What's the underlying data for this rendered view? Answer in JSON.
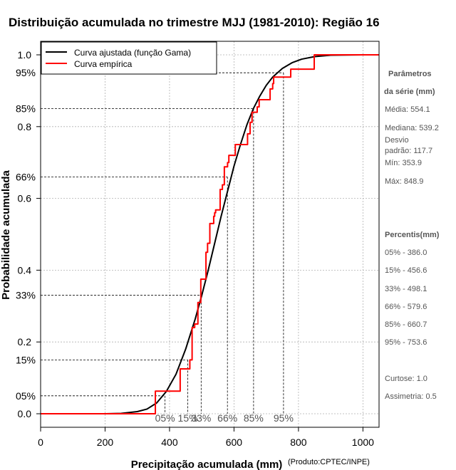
{
  "chart_data": {
    "type": "line",
    "title": "Distribuição acumulada no trimestre MJJ (1981-2010): Região 16",
    "xlabel": "Precipitação acumulada (mm)",
    "ylabel": "Probabilidade acumulada",
    "credit": "(Produto:CPTEC/INPE)",
    "xlim": [
      0,
      1050
    ],
    "ylim": [
      0,
      1
    ],
    "x_ticks": [
      0,
      200,
      400,
      600,
      800,
      1000
    ],
    "y_ticks": [
      {
        "value": 0.0,
        "label": "0.0"
      },
      {
        "value": 0.2,
        "label": "0.2"
      },
      {
        "value": 0.4,
        "label": "0.4"
      },
      {
        "value": 0.6,
        "label": "0.6"
      },
      {
        "value": 0.8,
        "label": "0.8"
      },
      {
        "value": 1.0,
        "label": "1.0"
      }
    ],
    "grid": true,
    "legend": {
      "position": "top-left",
      "entries": [
        {
          "label": "Curva ajustada (função Gama)",
          "color": "#000000"
        },
        {
          "label": "Curva empírica",
          "color": "#ff0000"
        }
      ]
    },
    "percentiles": [
      {
        "p": 0.05,
        "y_label": "05%",
        "x_label": "05%",
        "value": 386.0
      },
      {
        "p": 0.15,
        "y_label": "15%",
        "x_label": "15%",
        "value": 456.6
      },
      {
        "p": 0.33,
        "y_label": "33%",
        "x_label": "33%",
        "value": 498.1
      },
      {
        "p": 0.66,
        "y_label": "66%",
        "x_label": "66%",
        "value": 579.6
      },
      {
        "p": 0.85,
        "y_label": "85%",
        "x_label": "85%",
        "value": 660.7
      },
      {
        "p": 0.95,
        "y_label": "95%",
        "x_label": "95%",
        "value": 753.6
      }
    ],
    "series": [
      {
        "name": "Curva ajustada (função Gama)",
        "color": "#000000",
        "x": [
          0,
          200,
          250,
          300,
          330,
          360,
          390,
          420,
          450,
          480,
          500,
          520,
          540,
          560,
          580,
          600,
          620,
          640,
          660,
          680,
          700,
          720,
          750,
          780,
          810,
          850,
          900,
          1000,
          1050
        ],
        "y": [
          0,
          0,
          0.001,
          0.006,
          0.013,
          0.03,
          0.062,
          0.11,
          0.18,
          0.265,
          0.33,
          0.4,
          0.475,
          0.55,
          0.62,
          0.69,
          0.75,
          0.805,
          0.85,
          0.885,
          0.915,
          0.938,
          0.962,
          0.978,
          0.988,
          0.995,
          0.999,
          1.0,
          1.0
        ]
      },
      {
        "name": "Curva empírica",
        "color": "#ff0000",
        "x": [
          0,
          353.9,
          356,
          416,
          433,
          453,
          463,
          470,
          478,
          488,
          497,
          513,
          518,
          525,
          537,
          540,
          543,
          557,
          564,
          570,
          580,
          584,
          596,
          604,
          622,
          631,
          642,
          650,
          656,
          672,
          678,
          712,
          720,
          723,
          748,
          776,
          807,
          848.9,
          1050
        ],
        "y": [
          0,
          0,
          0.063,
          0.063,
          0.125,
          0.125,
          0.15,
          0.24,
          0.25,
          0.31,
          0.375,
          0.45,
          0.475,
          0.53,
          0.55,
          0.56,
          0.568,
          0.625,
          0.638,
          0.688,
          0.7,
          0.72,
          0.72,
          0.75,
          0.75,
          0.75,
          0.78,
          0.812,
          0.84,
          0.855,
          0.875,
          0.905,
          0.92,
          0.938,
          0.938,
          0.96,
          0.96,
          1.0,
          1.0
        ],
        "step": true
      }
    ]
  },
  "side_panel": {
    "params_title_1": "Parâmetros",
    "params_title_2": "da série (mm)",
    "media": "Média: 554.1",
    "mediana": "Mediana: 539.2",
    "desvio_1": "Desvio",
    "desvio_2": "padrão: 117.7",
    "min": "Mín: 353.9",
    "max": "Máx: 848.9",
    "percentis_title": "Percentis(mm)",
    "percentis": [
      "05% - 386.0",
      "15% - 456.6",
      "33% - 498.1",
      "66% - 579.6",
      "85% - 660.7",
      "95% - 753.6"
    ],
    "curtose": "Curtose: 1.0",
    "assimetria": "Assimetria: 0.5"
  }
}
